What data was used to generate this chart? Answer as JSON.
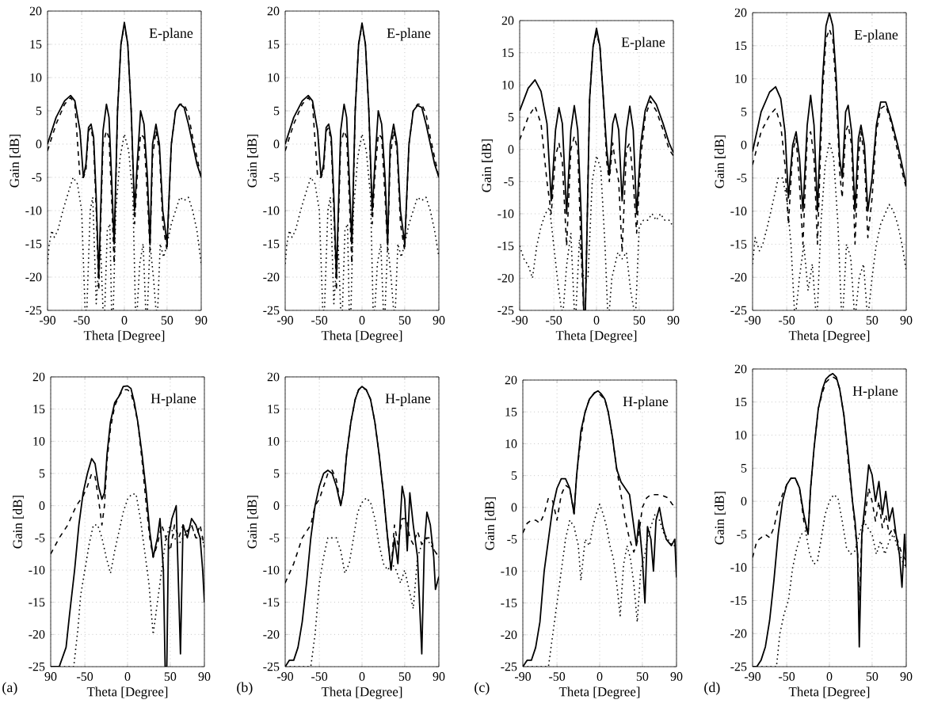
{
  "chart_data": [
    {
      "type": "line",
      "xlabel": "Theta [Degree]",
      "ylabel": "Gain [dB]",
      "xlim": [
        -90,
        90
      ],
      "ylim": [
        -25,
        20
      ],
      "xticks": [
        -90,
        -50,
        0,
        50,
        90
      ],
      "yticks": [
        -25,
        -20,
        -15,
        -10,
        -5,
        0,
        5,
        10,
        15,
        20
      ],
      "grid": true,
      "annotations": [
        "E-plane"
      ],
      "series": [
        {
          "color": "#000000",
          "line_style": "solid",
          "x": [
            -90,
            -80,
            -70,
            -63,
            -58,
            -52,
            -48,
            -45,
            -42,
            -39,
            -36,
            -33,
            -30,
            -25,
            -21,
            -18,
            -15,
            -12,
            -8,
            -4,
            0,
            4,
            8,
            12,
            15,
            19,
            23,
            27,
            30,
            33,
            37,
            41,
            45,
            50,
            55,
            60,
            65,
            70,
            75,
            80,
            85,
            90
          ],
          "values": [
            0,
            4,
            6.5,
            7.3,
            6.5,
            2,
            -5,
            -3,
            2.5,
            3,
            1,
            -8,
            -20,
            2,
            6,
            4,
            -5,
            -15,
            5,
            15,
            18.3,
            15,
            5,
            -10,
            -3,
            5,
            3,
            -5,
            -15,
            0,
            3,
            0,
            -10,
            -15,
            0,
            5,
            6,
            5.5,
            3,
            0,
            -3,
            -5
          ]
        },
        {
          "color": "#000000",
          "line_style": "dashed",
          "x": [
            -90,
            -80,
            -70,
            -63,
            -58,
            -52,
            -48,
            -45,
            -42,
            -39,
            -36,
            -33,
            -30,
            -25,
            -21,
            -18,
            -15,
            -12,
            -8,
            -4,
            0,
            4,
            8,
            12,
            15,
            19,
            23,
            27,
            30,
            33,
            37,
            41,
            45,
            50,
            55,
            60,
            65,
            70,
            75,
            80,
            85,
            90
          ],
          "values": [
            -1,
            3,
            6,
            7,
            6,
            -5,
            -5,
            -4,
            2,
            2.5,
            0,
            -10,
            -22,
            0,
            2,
            1,
            -8,
            -18,
            5,
            15,
            18,
            15,
            5,
            -12,
            -5,
            1.5,
            1,
            -8,
            -16,
            -2,
            2,
            -1,
            -12,
            -16,
            0,
            5,
            6,
            6,
            4.5,
            1,
            -2,
            -5
          ]
        },
        {
          "color": "#000000",
          "line_style": "dotted",
          "x": [
            -90,
            -88,
            -85,
            -82,
            -78,
            -72,
            -65,
            -60,
            -55,
            -50,
            -46,
            -44,
            -40,
            -37,
            -33,
            -28,
            -25,
            -23,
            -20,
            -17,
            -15,
            -13,
            -10,
            -5,
            0,
            5,
            10,
            13,
            15,
            18,
            22,
            25,
            27,
            30,
            34,
            37,
            39,
            42,
            46,
            50,
            55,
            60,
            65,
            70,
            75,
            80,
            85,
            90
          ],
          "values": [
            -18,
            -15,
            -13,
            -14,
            -13,
            -10,
            -7,
            -5,
            -6,
            -10,
            -25,
            -25,
            -10,
            -8,
            -24,
            -15,
            -25,
            -25,
            -13,
            -12,
            -25,
            -25,
            -10,
            -2,
            1.5,
            -1,
            -8,
            -25,
            -25,
            -18,
            -15,
            -25,
            -25,
            -15,
            -20,
            -25,
            -25,
            -15,
            -17,
            -15,
            -12,
            -10,
            -8,
            -8.5,
            -8,
            -10,
            -13,
            -18
          ]
        }
      ]
    },
    {
      "type": "line",
      "xlabel": "Theta [Degree]",
      "ylabel": "Gain [dB]",
      "xlim": [
        -90,
        90
      ],
      "ylim": [
        -25,
        20
      ],
      "xticks": [
        -90,
        -50,
        0,
        50,
        90
      ],
      "yticks": [
        -25,
        -20,
        -15,
        -10,
        -5,
        0,
        5,
        10,
        15,
        20
      ],
      "grid": true,
      "annotations": [
        "E-plane"
      ],
      "series": [
        {
          "color": "#000000",
          "line_style": "solid",
          "x": [
            -90,
            -80,
            -70,
            -63,
            -58,
            -52,
            -48,
            -45,
            -42,
            -39,
            -36,
            -33,
            -30,
            -25,
            -21,
            -18,
            -15,
            -12,
            -8,
            -4,
            0,
            4,
            8,
            12,
            15,
            19,
            23,
            27,
            30,
            33,
            37,
            41,
            45,
            50,
            55,
            60,
            65,
            70,
            75,
            80,
            85,
            90
          ],
          "values": [
            0,
            4,
            6.5,
            7.3,
            6.5,
            2,
            -5,
            -3,
            2.5,
            3,
            1,
            -8,
            -20,
            2,
            6,
            4,
            -5,
            -15,
            5,
            15,
            18.2,
            15,
            5,
            -10,
            -3,
            5,
            3,
            -5,
            -15,
            0,
            3,
            0,
            -10,
            -15,
            0,
            5,
            5.8,
            5.5,
            3,
            0,
            -3,
            -5
          ]
        },
        {
          "color": "#000000",
          "line_style": "dashed",
          "x": [
            -90,
            -80,
            -70,
            -63,
            -58,
            -52,
            -48,
            -45,
            -42,
            -39,
            -36,
            -33,
            -30,
            -25,
            -21,
            -18,
            -15,
            -12,
            -8,
            -4,
            0,
            4,
            8,
            12,
            15,
            19,
            23,
            27,
            30,
            33,
            37,
            41,
            45,
            50,
            55,
            60,
            65,
            70,
            75,
            80,
            85,
            90
          ],
          "values": [
            -1,
            3,
            6,
            7,
            6,
            -5,
            -5,
            -4,
            2,
            2.5,
            0,
            -10,
            -22,
            0,
            2,
            1,
            -8,
            -18,
            5,
            15,
            18,
            15,
            5,
            -12,
            -5,
            1.5,
            1,
            -8,
            -16,
            -2,
            2,
            -1,
            -12,
            -16,
            0,
            5,
            6,
            6,
            4.5,
            1,
            -2,
            -5
          ]
        },
        {
          "color": "#000000",
          "line_style": "dotted",
          "x": [
            -90,
            -88,
            -85,
            -82,
            -78,
            -72,
            -65,
            -60,
            -55,
            -50,
            -46,
            -44,
            -40,
            -37,
            -33,
            -28,
            -25,
            -23,
            -20,
            -17,
            -15,
            -13,
            -10,
            -5,
            0,
            5,
            10,
            13,
            15,
            18,
            22,
            25,
            27,
            30,
            34,
            37,
            39,
            42,
            46,
            50,
            55,
            60,
            65,
            70,
            75,
            80,
            85,
            90
          ],
          "values": [
            -18,
            -15,
            -13,
            -14,
            -13,
            -10,
            -7,
            -5,
            -6,
            -10,
            -25,
            -25,
            -10,
            -8,
            -24,
            -15,
            -25,
            -25,
            -13,
            -12,
            -25,
            -25,
            -10,
            -2,
            1.5,
            -1,
            -8,
            -25,
            -25,
            -18,
            -15,
            -25,
            -25,
            -15,
            -20,
            -25,
            -25,
            -15,
            -17,
            -15,
            -12,
            -10,
            -8,
            -8.5,
            -8,
            -10,
            -13,
            -17
          ]
        }
      ]
    },
    {
      "type": "line",
      "xlabel": "Theta [Degree]",
      "ylabel": "Gain [dB]",
      "xlim": [
        -90,
        90
      ],
      "ylim": [
        -25,
        20
      ],
      "xticks": [
        -90,
        -50,
        0,
        50,
        90
      ],
      "yticks": [
        -25,
        -20,
        -15,
        -10,
        -5,
        0,
        5,
        10,
        15,
        20
      ],
      "grid": true,
      "annotations": [
        "E-plane"
      ],
      "series": [
        {
          "color": "#000000",
          "line_style": "solid",
          "x": [
            -90,
            -80,
            -72,
            -65,
            -58,
            -53,
            -48,
            -44,
            -40,
            -35,
            -30,
            -26,
            -22,
            -18,
            -15,
            -13,
            -8,
            -4,
            0,
            4,
            8,
            12,
            15,
            19,
            22,
            26,
            30,
            35,
            39,
            43,
            47,
            52,
            57,
            63,
            70,
            78,
            85,
            90
          ],
          "values": [
            6,
            9.5,
            10.8,
            9,
            4,
            -8,
            3,
            6.5,
            4,
            -10,
            3,
            6.8,
            3,
            -10,
            -25,
            -25,
            8,
            16,
            18.8,
            16,
            8,
            0,
            -4,
            4,
            5.5,
            3,
            -8,
            3,
            6.7,
            3,
            -10,
            1,
            6,
            8.3,
            7,
            4,
            1,
            -0.5
          ]
        },
        {
          "color": "#000000",
          "line_style": "dashed",
          "x": [
            -90,
            -80,
            -72,
            -65,
            -58,
            -53,
            -48,
            -44,
            -40,
            -35,
            -30,
            -26,
            -22,
            -18,
            -15,
            -13,
            -8,
            -4,
            0,
            4,
            8,
            12,
            15,
            19,
            22,
            26,
            30,
            35,
            39,
            43,
            47,
            52,
            57,
            63,
            70,
            78,
            85,
            90
          ],
          "values": [
            1.5,
            5,
            6.7,
            4,
            -5,
            -10,
            -1,
            1,
            -2,
            -15,
            0,
            2,
            0,
            -16,
            -25,
            -25,
            8,
            16,
            18,
            16,
            8,
            -2,
            -5,
            1,
            -2,
            -5,
            -16,
            0,
            1,
            -5,
            -13,
            -1,
            5,
            7.5,
            6,
            3,
            0,
            -1
          ]
        },
        {
          "color": "#000000",
          "line_style": "dotted",
          "x": [
            -90,
            -85,
            -80,
            -75,
            -70,
            -65,
            -60,
            -55,
            -50,
            -45,
            -41,
            -39,
            -35,
            -30,
            -26,
            -24,
            -20,
            -15,
            -10,
            -5,
            0,
            5,
            10,
            13,
            15,
            18,
            25,
            30,
            35,
            40,
            44,
            46,
            50,
            55,
            60,
            65,
            70,
            75,
            80,
            85,
            90
          ],
          "values": [
            -15,
            -17,
            -18,
            -20,
            -15,
            -12,
            -10,
            -9,
            -15,
            -21,
            -25,
            -25,
            -18,
            -13,
            -25,
            -25,
            -14,
            -20,
            -20,
            -5,
            -1,
            -3,
            -15,
            -25,
            -25,
            -20,
            -16,
            -17,
            -16,
            -22,
            -25,
            -25,
            -12,
            -11,
            -11,
            -10,
            -11,
            -10,
            -11,
            -11,
            -12
          ]
        }
      ]
    },
    {
      "type": "line",
      "xlabel": "Theta [Degree]",
      "ylabel": "Gain [dB]",
      "xlim": [
        -90,
        90
      ],
      "ylim": [
        -25,
        20
      ],
      "xticks": [
        -90,
        -50,
        0,
        50,
        90
      ],
      "yticks": [
        -25,
        -20,
        -15,
        -10,
        -5,
        0,
        5,
        10,
        15,
        20
      ],
      "grid": true,
      "annotations": [
        "E-plane"
      ],
      "series": [
        {
          "color": "#000000",
          "line_style": "solid",
          "x": [
            -90,
            -80,
            -70,
            -63,
            -57,
            -52,
            -48,
            -43,
            -39,
            -35,
            -31,
            -26,
            -22,
            -18,
            -14,
            -8,
            -4,
            0,
            4,
            8,
            12,
            15,
            19,
            22,
            26,
            30,
            34,
            37,
            41,
            45,
            50,
            55,
            60,
            66,
            72,
            80,
            85,
            90
          ],
          "values": [
            -1,
            5,
            8,
            8.8,
            7,
            2,
            -8,
            0,
            2,
            -2,
            -10,
            3,
            7.5,
            3,
            -10,
            10,
            18,
            20,
            18,
            10,
            -2,
            -5,
            5,
            6,
            2,
            -10,
            1,
            3,
            0,
            -10,
            -5,
            3,
            6.5,
            6.5,
            4,
            0,
            -3,
            -6
          ]
        },
        {
          "color": "#000000",
          "line_style": "dashed",
          "x": [
            -90,
            -80,
            -70,
            -63,
            -57,
            -52,
            -48,
            -43,
            -39,
            -35,
            -31,
            -26,
            -22,
            -18,
            -14,
            -8,
            -4,
            0,
            4,
            8,
            12,
            15,
            19,
            22,
            26,
            30,
            34,
            37,
            41,
            45,
            50,
            55,
            60,
            66,
            72,
            80,
            85,
            90
          ],
          "values": [
            -3,
            2,
            4.5,
            5.5,
            3,
            -3,
            -12,
            -1,
            1,
            -6,
            -15,
            1,
            2,
            -2,
            -15,
            8,
            16,
            17.5,
            16,
            8,
            -4,
            -8,
            2,
            3,
            0,
            -15,
            -2,
            2,
            -2,
            -14,
            -8,
            2,
            5.5,
            6,
            3.5,
            -1,
            -4,
            -6.5
          ]
        },
        {
          "color": "#000000",
          "line_style": "dotted",
          "x": [
            -90,
            -87,
            -82,
            -78,
            -72,
            -65,
            -60,
            -55,
            -50,
            -45,
            -41,
            -39,
            -35,
            -30,
            -25,
            -20,
            -16,
            -14,
            -10,
            -5,
            0,
            5,
            10,
            14,
            16,
            20,
            25,
            29,
            31,
            35,
            40,
            44,
            46,
            50,
            55,
            60,
            65,
            70,
            75,
            80,
            85,
            90
          ],
          "values": [
            -18,
            -14,
            -16,
            -15,
            -12,
            -8,
            -5,
            -5,
            -8,
            -15,
            -25,
            -25,
            -20,
            -15,
            -22,
            -18,
            -25,
            -25,
            -12,
            -3,
            0.5,
            -2,
            -12,
            -25,
            -25,
            -15,
            -17,
            -25,
            -25,
            -20,
            -18,
            -25,
            -25,
            -20,
            -15,
            -12,
            -10.5,
            -9,
            -10,
            -12,
            -15,
            -19
          ]
        }
      ]
    },
    {
      "type": "line",
      "xlabel": "Theta [Degree]",
      "ylabel": "Gain [dB]",
      "xlim": [
        -90,
        90
      ],
      "ylim": [
        -25,
        20
      ],
      "xticks": [
        {
          "value": -90,
          "label": "90"
        },
        -50,
        0,
        50,
        90
      ],
      "yticks": [
        -25,
        -20,
        -15,
        -10,
        -5,
        0,
        5,
        10,
        15,
        20
      ],
      "grid": true,
      "annotations": [
        "H-plane",
        "(a)"
      ],
      "series": [
        {
          "color": "#000000",
          "line_style": "solid",
          "x": [
            -90,
            -80,
            -72,
            -68,
            -62,
            -57,
            -52,
            -47,
            -42,
            -38,
            -34,
            -30,
            -27,
            -24,
            -20,
            -15,
            -10,
            -5,
            0,
            4,
            8,
            12,
            17,
            22,
            26,
            30,
            35,
            38,
            42,
            44,
            46,
            48,
            52,
            57,
            62,
            65,
            70,
            75,
            80,
            85,
            88,
            90
          ],
          "values": [
            -25,
            -25,
            -22,
            -17,
            -10,
            -3,
            2,
            5,
            7.3,
            6.5,
            3,
            1,
            2,
            8,
            13,
            16,
            17,
            18.5,
            18.6,
            18.2,
            16,
            13,
            8,
            2,
            -4,
            -8,
            -5,
            -2,
            -10,
            -25,
            -25,
            -5,
            -2,
            0,
            -23,
            -3,
            -5,
            -2,
            -3,
            -5,
            -10,
            -15
          ]
        },
        {
          "color": "#000000",
          "line_style": "dashed",
          "x": [
            -90,
            -80,
            -70,
            -60,
            -52,
            -47,
            -42,
            -38,
            -34,
            -30,
            -27,
            -24,
            -20,
            -15,
            -10,
            -5,
            0,
            4,
            8,
            12,
            17,
            22,
            26,
            30,
            35,
            40,
            45,
            50,
            55,
            60,
            65,
            70,
            75,
            80,
            85,
            90
          ],
          "values": [
            -7.5,
            -5,
            -3,
            0,
            1.5,
            3,
            5,
            4.5,
            1,
            -3,
            0,
            7,
            12,
            15.5,
            17,
            18,
            18,
            17.5,
            15.5,
            13,
            7,
            0,
            -5,
            -8,
            -6,
            -3,
            -5,
            -7,
            -3,
            -5,
            -3,
            -4,
            -3,
            -5,
            -3,
            -6.5
          ]
        },
        {
          "color": "#000000",
          "line_style": "dotted",
          "x": [
            -90,
            -70,
            -63,
            -58,
            -55,
            -50,
            -45,
            -40,
            -35,
            -30,
            -25,
            -20,
            -15,
            -10,
            -5,
            0,
            5,
            10,
            15,
            20,
            25,
            30,
            35,
            40,
            45,
            50,
            55,
            60,
            65,
            70,
            75,
            80,
            85,
            90
          ],
          "values": [
            -25,
            -25,
            -25,
            -19,
            -14,
            -10,
            -6,
            -3,
            -3,
            -5,
            -8,
            -10.5,
            -7,
            -4,
            -1,
            1,
            1.8,
            1.8,
            -2,
            -7,
            -12,
            -20,
            -15,
            -10,
            -5,
            -3,
            -5,
            -6,
            -5,
            -4,
            -3,
            -5,
            -5,
            -6
          ]
        }
      ]
    },
    {
      "type": "line",
      "xlabel": "Theta [Degree]",
      "ylabel": "Gain [dB]",
      "xlim": [
        -90,
        90
      ],
      "ylim": [
        -25,
        20
      ],
      "xticks": [
        -90,
        -50,
        0,
        50,
        90
      ],
      "yticks": [
        -25,
        -20,
        -15,
        -10,
        -5,
        0,
        5,
        10,
        15,
        20
      ],
      "grid": true,
      "annotations": [
        "H-plane",
        "(b)"
      ],
      "series": [
        {
          "color": "#000000",
          "line_style": "solid",
          "x": [
            -90,
            -85,
            -80,
            -75,
            -70,
            -65,
            -60,
            -55,
            -50,
            -45,
            -40,
            -35,
            -30,
            -25,
            -22,
            -18,
            -13,
            -8,
            -4,
            0,
            5,
            10,
            15,
            20,
            25,
            30,
            34,
            38,
            42,
            47,
            50,
            53,
            56,
            60,
            65,
            70,
            73,
            76,
            80,
            84,
            86,
            90
          ],
          "values": [
            -25,
            -24,
            -24,
            -22,
            -18,
            -12,
            -5,
            0,
            3,
            5,
            5.5,
            5,
            3,
            0,
            2,
            8,
            13,
            16.5,
            18,
            18.5,
            18,
            16.5,
            13,
            8,
            2,
            -5,
            -10,
            -5,
            -9,
            3,
            1,
            -7,
            2,
            -3,
            -8,
            -23,
            -6,
            -1,
            -3,
            -8,
            -13,
            -11
          ]
        },
        {
          "color": "#000000",
          "line_style": "dashed",
          "x": [
            -90,
            -80,
            -70,
            -60,
            -55,
            -50,
            -45,
            -40,
            -35,
            -30,
            -25,
            -22,
            -18,
            -13,
            -8,
            -4,
            0,
            5,
            10,
            15,
            20,
            25,
            30,
            34,
            38,
            42,
            47,
            52,
            56,
            60,
            65,
            70,
            75,
            80,
            85,
            90
          ],
          "values": [
            -12,
            -9,
            -5,
            -3,
            0,
            1,
            3,
            5,
            5.5,
            4,
            0,
            2,
            8,
            13,
            16.5,
            18,
            18.3,
            18,
            16.5,
            13,
            8,
            2,
            -5,
            -10,
            -3,
            -6,
            -2,
            -2,
            -5,
            -6,
            -4,
            -6,
            -5,
            -5,
            -7,
            -8
          ]
        },
        {
          "color": "#000000",
          "line_style": "dotted",
          "x": [
            -90,
            -70,
            -60,
            -55,
            -50,
            -45,
            -40,
            -35,
            -30,
            -25,
            -20,
            -15,
            -10,
            -5,
            0,
            5,
            10,
            15,
            20,
            25,
            30,
            35,
            40,
            45,
            50,
            55,
            60,
            65,
            70,
            75,
            80,
            85,
            90
          ],
          "values": [
            -25,
            -25,
            -25,
            -20,
            -12,
            -8,
            -5,
            -5,
            -5,
            -7,
            -10.5,
            -9,
            -5,
            -1,
            0.5,
            1.2,
            0.5,
            -2,
            -6,
            -9,
            -10,
            -9,
            -10,
            -12,
            -10,
            -13,
            -16,
            -8,
            -6,
            -5,
            -6,
            -7,
            -8
          ]
        }
      ]
    },
    {
      "type": "line",
      "xlabel": "Theta [Degree]",
      "ylabel": "Gain [dB]",
      "xlim": [
        -90,
        90
      ],
      "ylim": [
        -25,
        20
      ],
      "xticks": [
        -90,
        -50,
        0,
        50,
        90
      ],
      "yticks": [
        -25,
        -20,
        -15,
        -10,
        -5,
        0,
        5,
        10,
        15,
        20
      ],
      "grid": true,
      "annotations": [
        "H-plane",
        "(c)"
      ],
      "series": [
        {
          "color": "#000000",
          "line_style": "solid",
          "x": [
            -90,
            -85,
            -80,
            -75,
            -70,
            -65,
            -60,
            -55,
            -50,
            -45,
            -40,
            -35,
            -30,
            -27,
            -22,
            -17,
            -12,
            -6,
            -2,
            2,
            6,
            10,
            15,
            20,
            25,
            30,
            35,
            40,
            43,
            46,
            50,
            53,
            56,
            60,
            63,
            66,
            70,
            74,
            78,
            84,
            88,
            90
          ],
          "values": [
            -25,
            -24,
            -24,
            -22,
            -18,
            -10,
            -5,
            0,
            3,
            4.5,
            4.5,
            3,
            -1,
            5,
            12,
            15,
            17,
            18,
            18.3,
            17.8,
            17,
            15,
            11,
            6,
            4,
            3,
            2,
            -3,
            -6,
            -2,
            -8,
            -15,
            -3,
            -5,
            -10,
            -2,
            0,
            -3,
            -5,
            -6,
            -5,
            -11
          ]
        },
        {
          "color": "#000000",
          "line_style": "dashed",
          "x": [
            -90,
            -85,
            -80,
            -75,
            -70,
            -65,
            -60,
            -55,
            -50,
            -45,
            -40,
            -35,
            -30,
            -27,
            -22,
            -17,
            -12,
            -6,
            -2,
            2,
            6,
            10,
            15,
            20,
            25,
            30,
            35,
            40,
            45,
            50,
            55,
            60,
            65,
            70,
            75,
            80,
            85,
            90
          ],
          "values": [
            -4,
            -2.5,
            -2,
            -2,
            -2.5,
            -1,
            1.5,
            1,
            -2,
            2,
            3.5,
            3,
            -1,
            5,
            11,
            15,
            17,
            18,
            18,
            17.5,
            17,
            15,
            11,
            6,
            2,
            -2,
            -5,
            -7,
            -5,
            0,
            1.5,
            2,
            2,
            2,
            1.8,
            1.5,
            0.5,
            0
          ]
        },
        {
          "color": "#000000",
          "line_style": "dotted",
          "x": [
            -90,
            -70,
            -60,
            -55,
            -50,
            -45,
            -40,
            -35,
            -30,
            -25,
            -22,
            -17,
            -12,
            -8,
            -4,
            0,
            4,
            8,
            12,
            16,
            20,
            24,
            28,
            32,
            36,
            40,
            44,
            48,
            52,
            56,
            60,
            65,
            70,
            75,
            80,
            85,
            90
          ],
          "values": [
            -25,
            -25,
            -25,
            -20,
            -15,
            -10,
            -5,
            -2,
            -3,
            -6,
            -11.5,
            -5,
            -6,
            -3,
            -1,
            0.5,
            -1,
            -3,
            -6,
            -8,
            -12,
            -17,
            -9,
            -6,
            -8,
            -12,
            -18,
            -10,
            -8,
            -5,
            -3,
            -1,
            -2,
            -4,
            -5,
            -6,
            -6
          ]
        }
      ]
    },
    {
      "type": "line",
      "xlabel": "Theta [Degree]",
      "ylabel": "Gain [dB]",
      "xlim": [
        -90,
        90
      ],
      "ylim": [
        -25,
        20
      ],
      "xticks": [
        -90,
        -50,
        0,
        50,
        90
      ],
      "yticks": [
        -25,
        -20,
        -15,
        -10,
        -5,
        0,
        5,
        10,
        15,
        20
      ],
      "grid": true,
      "annotations": [
        "H-plane",
        "(d)"
      ],
      "series": [
        {
          "color": "#000000",
          "line_style": "solid",
          "x": [
            -90,
            -85,
            -80,
            -75,
            -70,
            -65,
            -60,
            -55,
            -50,
            -45,
            -40,
            -35,
            -30,
            -25,
            -22,
            -18,
            -13,
            -8,
            -4,
            0,
            4,
            8,
            12,
            17,
            22,
            27,
            30,
            33,
            35,
            38,
            42,
            46,
            50,
            54,
            58,
            62,
            66,
            70,
            74,
            78,
            82,
            85,
            88,
            90
          ],
          "values": [
            -25,
            -25,
            -24,
            -22,
            -18,
            -12,
            -5,
            0,
            2.5,
            3.5,
            3.5,
            2,
            -2,
            -5,
            2,
            8,
            14,
            17,
            18.5,
            19,
            19.3,
            18.8,
            17,
            13,
            7,
            0,
            -3,
            -8,
            -22,
            -5,
            0,
            5.5,
            4,
            0,
            3,
            -2,
            1.5,
            -3,
            -1,
            -5,
            -8,
            -13,
            -5,
            -10
          ]
        },
        {
          "color": "#000000",
          "line_style": "dashed",
          "x": [
            -90,
            -85,
            -80,
            -75,
            -70,
            -65,
            -60,
            -55,
            -50,
            -45,
            -40,
            -35,
            -30,
            -25,
            -22,
            -18,
            -13,
            -8,
            -4,
            0,
            4,
            8,
            12,
            17,
            22,
            27,
            30,
            33,
            35,
            38,
            42,
            46,
            50,
            54,
            58,
            62,
            66,
            70,
            75,
            80,
            85,
            90
          ],
          "values": [
            -8.5,
            -6,
            -5.5,
            -5,
            -5.5,
            -4,
            -1,
            1,
            2.5,
            3.5,
            3.5,
            2,
            -3,
            -5,
            2,
            8,
            14,
            16.5,
            18,
            18.5,
            18.8,
            18.5,
            17,
            13,
            6,
            0,
            -4,
            -8,
            -15,
            -5,
            -2,
            2,
            0,
            -3,
            0,
            -4,
            -2,
            -5,
            -4,
            -6,
            -8,
            -9
          ]
        },
        {
          "color": "#000000",
          "line_style": "dotted",
          "x": [
            -90,
            -70,
            -62,
            -58,
            -53,
            -48,
            -43,
            -38,
            -33,
            -28,
            -23,
            -18,
            -14,
            -10,
            -5,
            0,
            5,
            10,
            15,
            20,
            25,
            30,
            35,
            40,
            45,
            50,
            55,
            60,
            65,
            70,
            75,
            80,
            85,
            90
          ],
          "values": [
            -25,
            -25,
            -25,
            -20,
            -17,
            -15,
            -10,
            -7,
            -5,
            -4.5,
            -8,
            -9.5,
            -9,
            -6,
            -2,
            0,
            1,
            0.5,
            -3,
            -7,
            -8,
            -7.5,
            -5,
            -3,
            -4,
            -5,
            -8,
            -6,
            -8,
            -6,
            -5,
            -7,
            -9,
            -10
          ]
        }
      ]
    }
  ]
}
